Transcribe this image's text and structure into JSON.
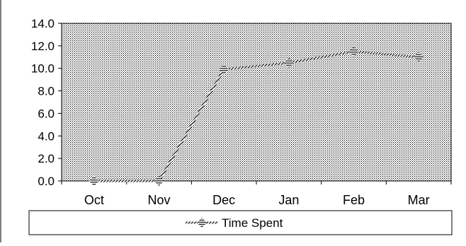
{
  "chart_data": {
    "type": "line",
    "categories": [
      "Oct",
      "Nov",
      "Dec",
      "Jan",
      "Feb",
      "Mar"
    ],
    "series": [
      {
        "name": "Time Spent",
        "values": [
          0.0,
          0.0,
          9.9,
          10.5,
          11.5,
          11.0
        ]
      }
    ],
    "ylim": [
      0,
      14
    ],
    "yticks": [
      "0.0",
      "2.0",
      "4.0",
      "6.0",
      "8.0",
      "10.0",
      "12.0",
      "14.0"
    ],
    "grid": false,
    "legend": "bottom",
    "plot_fill": "dotted-gray"
  }
}
